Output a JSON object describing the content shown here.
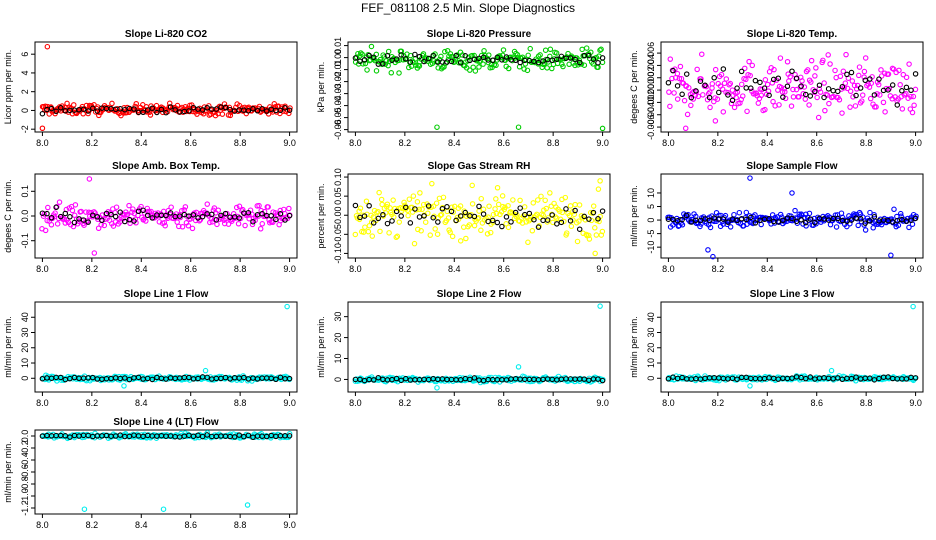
{
  "page": {
    "title": "FEF_081108  2.5 Min. Slope Diagnostics"
  },
  "chart_data": [
    {
      "type": "scatter",
      "title": "Slope Li-820 CO2",
      "xlabel": "",
      "ylabel": "Licor ppm per min.",
      "xlim": [
        7.97,
        9.03
      ],
      "ylim": [
        -2.3,
        7.3
      ],
      "xticks": [
        "8.0",
        "8.2",
        "8.4",
        "8.6",
        "8.8",
        "9.0"
      ],
      "yticks": [
        -2,
        0,
        2,
        4,
        6
      ],
      "ytick_labels": [
        "-2",
        "0",
        "2",
        "4",
        "6"
      ],
      "color": "#ff0000",
      "center": 0.1,
      "spread": 0.4,
      "outliers": [
        [
          8.02,
          6.8
        ],
        [
          8.0,
          -1.9
        ]
      ]
    },
    {
      "type": "scatter",
      "title": "Slope Li-820 Pressure",
      "xlabel": "",
      "ylabel": "kPa per min.",
      "xlim": [
        7.97,
        9.03
      ],
      "ylim": [
        -0.062,
        0.013
      ],
      "xticks": [
        "8.0",
        "8.2",
        "8.4",
        "8.6",
        "8.8",
        "9.0"
      ],
      "yticks": [
        -0.06,
        -0.05,
        -0.04,
        -0.03,
        -0.02,
        -0.01,
        0.0,
        0.01
      ],
      "ytick_labels": [
        "-0.06",
        "-0.05",
        "-0.04",
        "-0.03",
        "-0.02",
        "-0.01",
        "0.00",
        "0.01"
      ],
      "color": "#00cc00",
      "center": -0.002,
      "spread": 0.006,
      "outliers": [
        [
          8.33,
          -0.058
        ],
        [
          8.66,
          -0.058
        ],
        [
          9.0,
          -0.059
        ]
      ]
    },
    {
      "type": "scatter",
      "title": "Slope Li-820 Temp.",
      "xlabel": "",
      "ylabel": "degees C per min.",
      "xlim": [
        7.97,
        9.03
      ],
      "ylim": [
        -0.0068,
        0.0078
      ],
      "xticks": [
        "8.0",
        "8.2",
        "8.4",
        "8.6",
        "8.8",
        "9.0"
      ],
      "yticks": [
        -0.006,
        -0.004,
        -0.002,
        0.0,
        0.002,
        0.004,
        0.006
      ],
      "ytick_labels": [
        "-0.006",
        "-0.004",
        "-0.002",
        "0.000",
        "0.002",
        "0.004",
        "0.006"
      ],
      "color": "#ff00ff",
      "center": 0.0005,
      "spread": 0.003,
      "outliers": [
        [
          8.07,
          -0.0062
        ],
        [
          8.19,
          -0.005
        ]
      ]
    },
    {
      "type": "scatter",
      "title": "Slope Amb. Box Temp.",
      "xlabel": "",
      "ylabel": "degees C per min.",
      "xlim": [
        7.97,
        9.03
      ],
      "ylim": [
        -0.17,
        0.17
      ],
      "xticks": [
        "8.0",
        "8.2",
        "8.4",
        "8.6",
        "8.8",
        "9.0"
      ],
      "yticks": [
        -0.1,
        0.0,
        0.1
      ],
      "ytick_labels": [
        "-0.1",
        "0.0",
        "0.1"
      ],
      "color": "#ff00ff",
      "center": 0.0,
      "spread": 0.035,
      "outliers": [
        [
          8.19,
          0.15
        ],
        [
          8.21,
          -0.15
        ]
      ]
    },
    {
      "type": "scatter",
      "title": "Slope Gas Stream RH",
      "xlabel": "",
      "ylabel": "percent per min.",
      "xlim": [
        7.97,
        9.03
      ],
      "ylim": [
        -0.112,
        0.108
      ],
      "xticks": [
        "8.0",
        "8.2",
        "8.4",
        "8.6",
        "8.8",
        "9.0"
      ],
      "yticks": [
        -0.1,
        -0.05,
        0.0,
        0.05,
        0.1
      ],
      "ytick_labels": [
        "-0.10",
        "-0.05",
        "0.00",
        "0.05",
        "0.10"
      ],
      "color": "#ffff00",
      "center": 0.0,
      "spread": 0.04,
      "outliers": [
        [
          8.99,
          0.09
        ],
        [
          8.97,
          -0.1
        ]
      ]
    },
    {
      "type": "scatter",
      "title": "Slope Sample Flow",
      "xlabel": "",
      "ylabel": "ml/min per min.",
      "xlim": [
        7.97,
        9.03
      ],
      "ylim": [
        -14,
        17
      ],
      "xticks": [
        "8.0",
        "8.2",
        "8.4",
        "8.6",
        "8.8",
        "9.0"
      ],
      "yticks": [
        -10,
        -5,
        0,
        5,
        10
      ],
      "ytick_labels": [
        "-10",
        "-5",
        "0",
        "5",
        "10"
      ],
      "color": "#0000ff",
      "center": 0.0,
      "spread": 2.0,
      "outliers": [
        [
          8.33,
          15.5
        ],
        [
          8.16,
          -11
        ],
        [
          8.18,
          -13.5
        ],
        [
          8.5,
          10
        ],
        [
          8.9,
          -13
        ]
      ]
    },
    {
      "type": "scatter",
      "title": "Slope Line 1 Flow",
      "xlabel": "",
      "ylabel": "ml/min per min.",
      "xlim": [
        7.97,
        9.03
      ],
      "ylim": [
        -9,
        50
      ],
      "xticks": [
        "8.0",
        "8.2",
        "8.4",
        "8.6",
        "8.8",
        "9.0"
      ],
      "yticks": [
        0,
        10,
        20,
        30,
        40
      ],
      "ytick_labels": [
        "0",
        "10",
        "20",
        "30",
        "40"
      ],
      "color": "#00eeee",
      "center": 0.0,
      "spread": 1.0,
      "outliers": [
        [
          8.99,
          47
        ],
        [
          8.33,
          -5
        ],
        [
          8.66,
          5
        ]
      ]
    },
    {
      "type": "scatter",
      "title": "Slope Line 2 Flow",
      "xlabel": "",
      "ylabel": "ml/min per min.",
      "xlim": [
        7.97,
        9.03
      ],
      "ylim": [
        -6,
        37
      ],
      "xticks": [
        "8.0",
        "8.2",
        "8.4",
        "8.6",
        "8.8",
        "9.0"
      ],
      "yticks": [
        0,
        10,
        20,
        30
      ],
      "ytick_labels": [
        "0",
        "10",
        "20",
        "30"
      ],
      "color": "#00eeee",
      "center": 0.0,
      "spread": 0.8,
      "outliers": [
        [
          8.99,
          35
        ],
        [
          8.33,
          -4
        ],
        [
          8.66,
          6
        ]
      ]
    },
    {
      "type": "scatter",
      "title": "Slope Line 3 Flow",
      "xlabel": "",
      "ylabel": "ml/min per min.",
      "xlim": [
        7.97,
        9.03
      ],
      "ylim": [
        -9,
        50
      ],
      "xticks": [
        "8.0",
        "8.2",
        "8.4",
        "8.6",
        "8.8",
        "9.0"
      ],
      "yticks": [
        0,
        10,
        20,
        30,
        40
      ],
      "ytick_labels": [
        "0",
        "10",
        "20",
        "30",
        "40"
      ],
      "color": "#00eeee",
      "center": 0.0,
      "spread": 1.0,
      "outliers": [
        [
          8.99,
          47
        ],
        [
          8.33,
          -5
        ],
        [
          8.66,
          5
        ]
      ]
    },
    {
      "type": "scatter",
      "title": "Slope Line 4 (LT) Flow",
      "xlabel": "",
      "ylabel": "ml/min per min.",
      "xlim": [
        7.97,
        9.03
      ],
      "ylim": [
        -1.3,
        0.1
      ],
      "xticks": [
        "8.0",
        "8.2",
        "8.4",
        "8.6",
        "8.8",
        "9.0"
      ],
      "yticks": [
        -1.2,
        -1.0,
        -0.8,
        -0.6,
        -0.4,
        -0.2,
        0.0
      ],
      "ytick_labels": [
        "-1.2",
        "-1.0",
        "-0.8",
        "-0.6",
        "-0.4",
        "-0.2",
        "0.0"
      ],
      "color": "#00eeee",
      "center": 0.0,
      "spread": 0.025,
      "outliers": [
        [
          8.17,
          -1.22
        ],
        [
          8.49,
          -1.22
        ],
        [
          8.83,
          -1.15
        ]
      ]
    }
  ]
}
